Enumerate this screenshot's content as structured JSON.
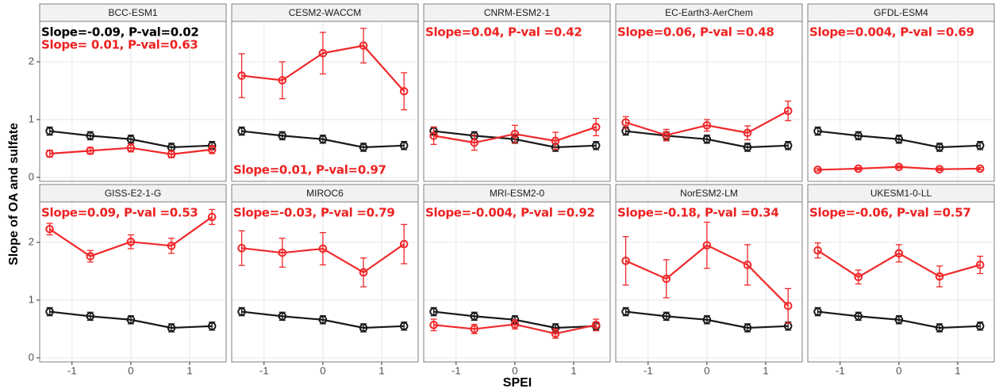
{
  "x_label": "SPEI",
  "y_label": "Slope of OA and sulfate",
  "xlim": [
    -1.55,
    1.62
  ],
  "xticks": [
    -1,
    0,
    1
  ],
  "ylim": [
    -0.07,
    2.7
  ],
  "yticks": [
    0,
    1,
    2
  ],
  "grid": true,
  "chart_data": [
    {
      "type": "line",
      "title": "BCC-ESM1",
      "x": [
        -1.38,
        -0.69,
        0,
        0.69,
        1.38
      ],
      "annotations": [
        {
          "text": "Slope=-0.09, P-val=0.02",
          "color": "#000000",
          "corner": "top-left"
        },
        {
          "text": "Slope= 0.01, P-val=0.63",
          "color": "#ee2222",
          "corner": "top-left"
        }
      ],
      "series": [
        {
          "color": "#1a1a1a",
          "values": [
            0.8,
            0.72,
            0.66,
            0.52,
            0.55
          ],
          "errors": [
            0.07,
            0.07,
            0.07,
            0.07,
            0.07
          ]
        },
        {
          "color": "#f0282a",
          "values": [
            0.41,
            0.46,
            0.51,
            0.4,
            0.48
          ],
          "errors": [
            0.06,
            0.06,
            0.07,
            0.06,
            0.07
          ]
        }
      ]
    },
    {
      "type": "line",
      "title": "CESM2-WACCM",
      "x": [
        -1.38,
        -0.69,
        0,
        0.69,
        1.38
      ],
      "annotations": [
        {
          "text": "Slope=0.01, P-val=0.97",
          "color": "#ee2222",
          "corner": "bottom-left"
        }
      ],
      "series": [
        {
          "color": "#1a1a1a",
          "values": [
            0.8,
            0.72,
            0.66,
            0.52,
            0.55
          ],
          "errors": [
            0.07,
            0.07,
            0.07,
            0.07,
            0.07
          ]
        },
        {
          "color": "#f0282a",
          "values": [
            1.76,
            1.68,
            2.15,
            2.28,
            1.49
          ],
          "errors": [
            0.38,
            0.32,
            0.36,
            0.3,
            0.32
          ]
        }
      ]
    },
    {
      "type": "line",
      "title": "CNRM-ESM2-1",
      "x": [
        -1.38,
        -0.69,
        0,
        0.69,
        1.38
      ],
      "annotations": [
        {
          "text": "Slope=0.04, P-val  =0.42",
          "color": "#ee2222",
          "corner": "top-left"
        }
      ],
      "series": [
        {
          "color": "#1a1a1a",
          "values": [
            0.8,
            0.72,
            0.66,
            0.52,
            0.55
          ],
          "errors": [
            0.07,
            0.07,
            0.07,
            0.07,
            0.07
          ]
        },
        {
          "color": "#f0282a",
          "values": [
            0.72,
            0.6,
            0.75,
            0.63,
            0.87
          ],
          "errors": [
            0.15,
            0.13,
            0.15,
            0.15,
            0.15
          ]
        }
      ]
    },
    {
      "type": "line",
      "title": "EC-Earth3-AerChem",
      "x": [
        -1.38,
        -0.69,
        0,
        0.69,
        1.38
      ],
      "annotations": [
        {
          "text": "Slope=0.06, P-val =0.48",
          "color": "#ee2222",
          "corner": "top-left"
        }
      ],
      "series": [
        {
          "color": "#1a1a1a",
          "values": [
            0.8,
            0.72,
            0.66,
            0.52,
            0.55
          ],
          "errors": [
            0.07,
            0.07,
            0.07,
            0.07,
            0.07
          ]
        },
        {
          "color": "#f0282a",
          "values": [
            0.95,
            0.73,
            0.9,
            0.77,
            1.15
          ],
          "errors": [
            0.1,
            0.1,
            0.1,
            0.12,
            0.17
          ]
        }
      ]
    },
    {
      "type": "line",
      "title": "GFDL-ESM4",
      "x": [
        -1.38,
        -0.69,
        0,
        0.69,
        1.38
      ],
      "annotations": [
        {
          "text": "Slope=0.004, P-val =0.69",
          "color": "#ee2222",
          "corner": "top-left"
        }
      ],
      "series": [
        {
          "color": "#1a1a1a",
          "values": [
            0.8,
            0.72,
            0.66,
            0.52,
            0.55
          ],
          "errors": [
            0.07,
            0.07,
            0.07,
            0.07,
            0.07
          ]
        },
        {
          "color": "#f0282a",
          "values": [
            0.13,
            0.15,
            0.18,
            0.14,
            0.15
          ],
          "errors": [
            0.02,
            0.02,
            0.02,
            0.02,
            0.02
          ]
        }
      ]
    },
    {
      "type": "line",
      "title": "GISS-E2-1-G",
      "x": [
        -1.38,
        -0.69,
        0,
        0.69,
        1.38
      ],
      "annotations": [
        {
          "text": "Slope=0.09, P-val =0.53",
          "color": "#ee2222",
          "corner": "top-left"
        }
      ],
      "series": [
        {
          "color": "#1a1a1a",
          "values": [
            0.8,
            0.72,
            0.66,
            0.52,
            0.55
          ],
          "errors": [
            0.07,
            0.07,
            0.07,
            0.07,
            0.07
          ]
        },
        {
          "color": "#f0282a",
          "values": [
            2.23,
            1.76,
            2.01,
            1.94,
            2.44
          ],
          "errors": [
            0.1,
            0.1,
            0.12,
            0.13,
            0.13
          ]
        }
      ]
    },
    {
      "type": "line",
      "title": "MIROC6",
      "x": [
        -1.38,
        -0.69,
        0,
        0.69,
        1.38
      ],
      "annotations": [
        {
          "text": "Slope=-0.03, P-val =0.79",
          "color": "#ee2222",
          "corner": "top-left"
        }
      ],
      "series": [
        {
          "color": "#1a1a1a",
          "values": [
            0.8,
            0.72,
            0.66,
            0.52,
            0.55
          ],
          "errors": [
            0.07,
            0.07,
            0.07,
            0.07,
            0.07
          ]
        },
        {
          "color": "#f0282a",
          "values": [
            1.9,
            1.82,
            1.89,
            1.48,
            1.97
          ],
          "errors": [
            0.3,
            0.25,
            0.28,
            0.25,
            0.34
          ]
        }
      ]
    },
    {
      "type": "line",
      "title": "MRI-ESM2-0",
      "x": [
        -1.38,
        -0.69,
        0,
        0.69,
        1.38
      ],
      "annotations": [
        {
          "text": "Slope=-0.004, P-val =0.92",
          "color": "#ee2222",
          "corner": "top-left"
        }
      ],
      "series": [
        {
          "color": "#1a1a1a",
          "values": [
            0.8,
            0.72,
            0.66,
            0.52,
            0.55
          ],
          "errors": [
            0.07,
            0.07,
            0.07,
            0.07,
            0.07
          ]
        },
        {
          "color": "#f0282a",
          "values": [
            0.57,
            0.5,
            0.58,
            0.42,
            0.57
          ],
          "errors": [
            0.1,
            0.08,
            0.08,
            0.08,
            0.1
          ]
        }
      ]
    },
    {
      "type": "line",
      "title": "NorESM2-LM",
      "x": [
        -1.38,
        -0.69,
        0,
        0.69,
        1.38
      ],
      "annotations": [
        {
          "text": "Slope=-0.18, P-val =0.34",
          "color": "#ee2222",
          "corner": "top-left"
        }
      ],
      "series": [
        {
          "color": "#1a1a1a",
          "values": [
            0.8,
            0.72,
            0.66,
            0.52,
            0.55
          ],
          "errors": [
            0.07,
            0.07,
            0.07,
            0.07,
            0.07
          ]
        },
        {
          "color": "#f0282a",
          "values": [
            1.68,
            1.37,
            1.95,
            1.61,
            0.9
          ],
          "errors": [
            0.42,
            0.33,
            0.4,
            0.35,
            0.3
          ]
        }
      ]
    },
    {
      "type": "line",
      "title": "UKESM1-0-LL",
      "x": [
        -1.38,
        -0.69,
        0,
        0.69,
        1.38
      ],
      "annotations": [
        {
          "text": "Slope=-0.06, P-val =0.57",
          "color": "#ee2222",
          "corner": "top-left"
        }
      ],
      "series": [
        {
          "color": "#1a1a1a",
          "values": [
            0.8,
            0.72,
            0.66,
            0.52,
            0.55
          ],
          "errors": [
            0.07,
            0.07,
            0.07,
            0.07,
            0.07
          ]
        },
        {
          "color": "#f0282a",
          "values": [
            1.86,
            1.4,
            1.81,
            1.41,
            1.61
          ],
          "errors": [
            0.13,
            0.12,
            0.15,
            0.18,
            0.15
          ]
        }
      ]
    }
  ]
}
